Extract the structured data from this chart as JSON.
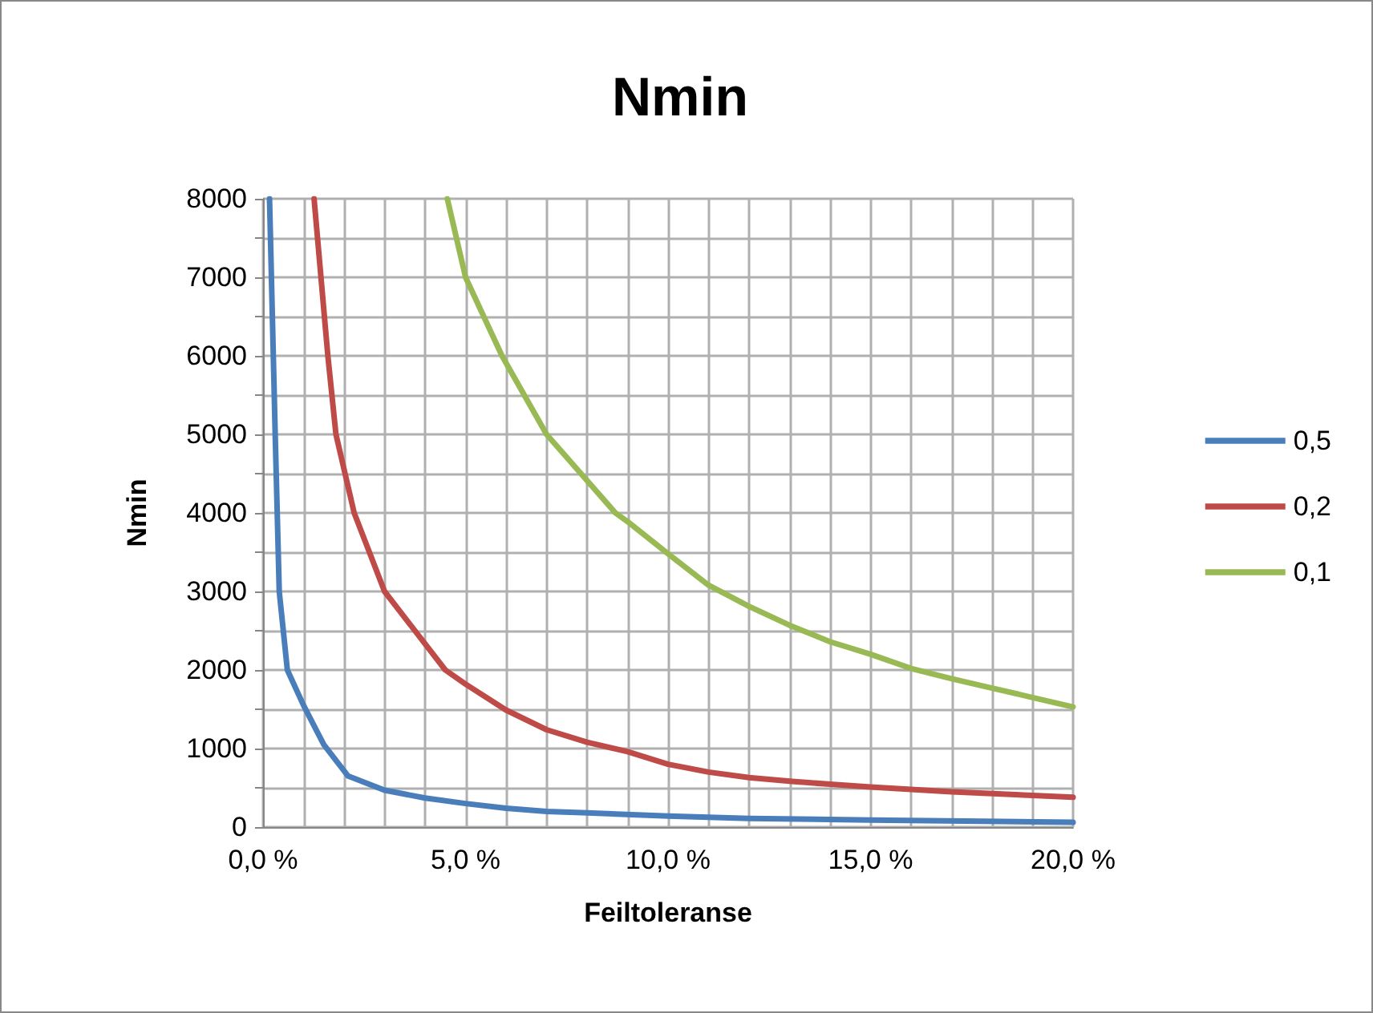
{
  "chart_data": {
    "type": "line",
    "title": "Nmin",
    "xlabel": "Feiltoleranse",
    "ylabel": "Nmin",
    "xlim": [
      0,
      20
    ],
    "ylim": [
      0,
      8000
    ],
    "xticks": [
      {
        "value": 0,
        "label": "0,0 %"
      },
      {
        "value": 1,
        "label": null
      },
      {
        "value": 2,
        "label": null
      },
      {
        "value": 3,
        "label": null
      },
      {
        "value": 4,
        "label": null
      },
      {
        "value": 5,
        "label": "5,0 %"
      },
      {
        "value": 6,
        "label": null
      },
      {
        "value": 7,
        "label": null
      },
      {
        "value": 8,
        "label": null
      },
      {
        "value": 9,
        "label": null
      },
      {
        "value": 10,
        "label": "10,0 %"
      },
      {
        "value": 11,
        "label": null
      },
      {
        "value": 12,
        "label": null
      },
      {
        "value": 13,
        "label": null
      },
      {
        "value": 14,
        "label": null
      },
      {
        "value": 15,
        "label": "15,0 %"
      },
      {
        "value": 16,
        "label": null
      },
      {
        "value": 17,
        "label": null
      },
      {
        "value": 18,
        "label": null
      },
      {
        "value": 19,
        "label": null
      },
      {
        "value": 20,
        "label": "20,0 %"
      }
    ],
    "yticks": [
      0,
      {
        "value": 500,
        "label": null
      },
      1000,
      {
        "value": 1500,
        "label": null
      },
      2000,
      {
        "value": 2500,
        "label": null
      },
      3000,
      {
        "value": 3500,
        "label": null
      },
      4000,
      {
        "value": 4500,
        "label": null
      },
      5000,
      {
        "value": 5500,
        "label": null
      },
      6000,
      {
        "value": 6500,
        "label": null
      },
      7000,
      {
        "value": 7500,
        "label": null
      },
      8000
    ],
    "grid": true,
    "legend": "right",
    "marker": "none",
    "line_style": "solid",
    "series": [
      {
        "name": "0,5",
        "color": "#4a7ebb",
        "x": [
          0.16,
          0.3,
          0.4,
          0.6,
          1,
          1.5,
          2.1,
          3,
          4,
          5,
          6,
          7,
          8,
          10,
          12,
          15,
          20
        ],
        "values": [
          8000,
          5000,
          3000,
          2000,
          1550,
          1050,
          650,
          470,
          370,
          300,
          240,
          200,
          180,
          140,
          110,
          90,
          60
        ]
      },
      {
        "name": "0,2",
        "color": "#be4b48",
        "x": [
          1.26,
          1.6,
          1.8,
          2.25,
          3,
          4.5,
          5,
          6,
          7,
          8,
          9,
          10,
          11,
          12,
          13,
          14,
          15,
          17,
          20
        ],
        "values": [
          8000,
          6000,
          5000,
          4000,
          3000,
          2000,
          1820,
          1490,
          1240,
          1080,
          960,
          800,
          700,
          630,
          585,
          545,
          510,
          450,
          380
        ]
      },
      {
        "name": "0,1",
        "color": "#98b954",
        "x": [
          4.55,
          5,
          5.9,
          7,
          8.7,
          9,
          10,
          11,
          12,
          13,
          14,
          15,
          16,
          17,
          18,
          19,
          20
        ],
        "values": [
          8000,
          7000,
          6000,
          5000,
          4000,
          3890,
          3480,
          3080,
          2810,
          2570,
          2360,
          2200,
          2020,
          1890,
          1770,
          1650,
          1530
        ]
      }
    ]
  }
}
